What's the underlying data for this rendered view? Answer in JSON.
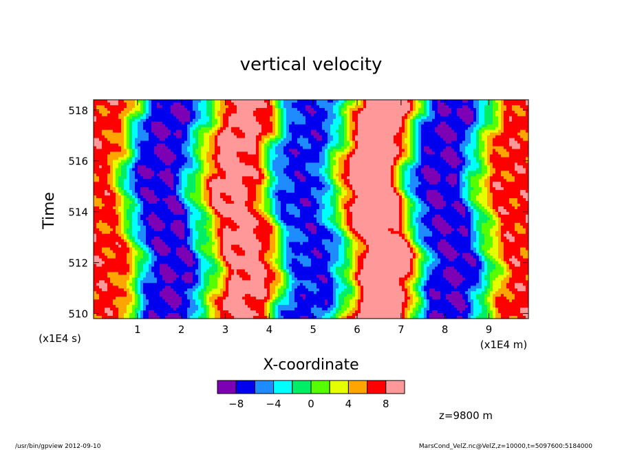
{
  "chart_data": {
    "type": "heatmap",
    "title": "vertical velocity",
    "xlabel": "X-coordinate",
    "ylabel": "Time",
    "x_units": "(x1E4 m)",
    "y_units": "(x1E4 s)",
    "xlim": [
      0,
      9.9
    ],
    "ylim": [
      509.8,
      518.4
    ],
    "x_ticks": [
      1,
      2,
      3,
      4,
      5,
      6,
      7,
      8,
      9
    ],
    "y_ticks": [
      510,
      512,
      514,
      516,
      518
    ],
    "x_tick_labels": [
      "1",
      "2",
      "3",
      "4",
      "5",
      "6",
      "7",
      "8",
      "9"
    ],
    "y_tick_labels": [
      "510",
      "512",
      "514",
      "516",
      "518"
    ],
    "annotation": "z=9800 m",
    "footer_left": "/usr/bin/gpview  2012-09-10",
    "footer_right": "MarsCond_VelZ.nc@VelZ,z=10000,t=5097600:5184000",
    "colorbar": {
      "levels": [
        -10,
        -8,
        -6,
        -4,
        -2,
        0,
        2,
        4,
        6,
        8,
        10
      ],
      "tick_values": [
        -8,
        -4,
        0,
        4,
        8
      ],
      "tick_labels": [
        "−8",
        "−4",
        "0",
        "4",
        "8"
      ],
      "colors": [
        "#7d00b4",
        "#0000ee",
        "#1e8cff",
        "#00ffff",
        "#00ee66",
        "#55ff00",
        "#e6ff00",
        "#ffa500",
        "#ff0000",
        "#ff9999"
      ]
    },
    "field": {
      "description_of_pattern": "velocity bands parallel to time axis, peaks shifting slightly with time",
      "band_centers_x": [
        0.15,
        1.6,
        3.4,
        4.8,
        6.5,
        8.0,
        9.7
      ],
      "band_values": [
        7,
        -8,
        9,
        -7,
        10,
        -8,
        7
      ]
    }
  }
}
